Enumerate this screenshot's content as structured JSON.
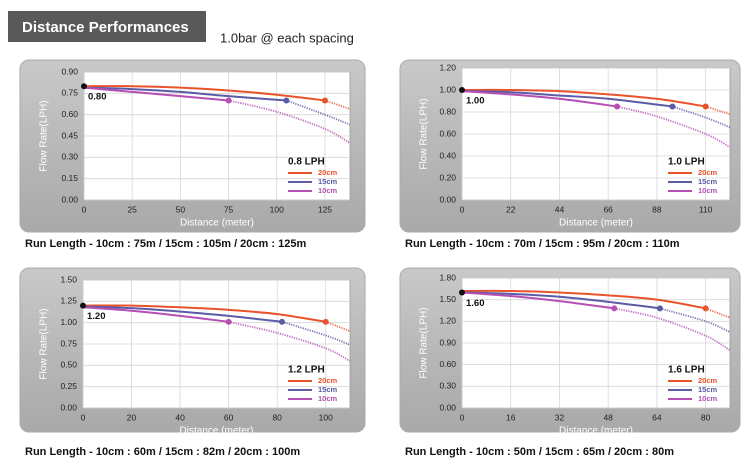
{
  "header": {
    "title": "Distance Performances",
    "subtitle": "1.0bar @ each spacing"
  },
  "chart_data": [
    {
      "type": "line",
      "title": "0.8 LPH",
      "xlabel": "Distance (meter)",
      "ylabel": "Flow Rate(LPH)",
      "start_label": {
        "value": 0.8,
        "label": "0.80"
      },
      "caption": "Run Length - 10cm : 75m / 15cm : 105m / 20cm : 125m",
      "xlim": [
        0,
        138
      ],
      "ylim": [
        0,
        0.9
      ],
      "xticks": [
        0,
        25,
        50,
        75,
        100,
        125
      ],
      "yticks": [
        {
          "value": 0,
          "label": "0.00"
        },
        {
          "value": 0.15,
          "label": "0.15"
        },
        {
          "value": 0.3,
          "label": "0.30"
        },
        {
          "value": 0.45,
          "label": "0.45"
        },
        {
          "value": 0.6,
          "label": "0.60"
        },
        {
          "value": 0.75,
          "label": "0.75"
        },
        {
          "value": 0.9,
          "label": "0.90"
        }
      ],
      "grid": true,
      "series": [
        {
          "name": "20cm",
          "color": "#e8532b",
          "run_length": 125,
          "x": [
            0,
            25,
            50,
            75,
            100,
            125,
            138
          ],
          "values": [
            0.8,
            0.8,
            0.79,
            0.77,
            0.74,
            0.7,
            0.64
          ]
        },
        {
          "name": "15cm",
          "color": "#5b5ba6",
          "run_length": 105,
          "x": [
            0,
            25,
            50,
            75,
            105,
            125,
            138
          ],
          "values": [
            0.79,
            0.78,
            0.76,
            0.73,
            0.7,
            0.6,
            0.53
          ]
        },
        {
          "name": "10cm",
          "color": "#b64fb4",
          "run_length": 75,
          "x": [
            0,
            25,
            50,
            75,
            100,
            125,
            138
          ],
          "values": [
            0.79,
            0.76,
            0.73,
            0.7,
            0.62,
            0.5,
            0.4
          ]
        }
      ]
    },
    {
      "type": "line",
      "title": "1.0 LPH",
      "xlabel": "Distance (meter)",
      "ylabel": "Flow Rate(LPH)",
      "start_label": {
        "value": 1.0,
        "label": "1.00"
      },
      "caption": "Run Length - 10cm : 70m / 15cm : 95m / 20cm : 110m",
      "xlim": [
        0,
        121
      ],
      "ylim": [
        0,
        1.2
      ],
      "xticks": [
        0,
        22,
        44,
        66,
        88,
        110
      ],
      "yticks": [
        {
          "value": 0,
          "label": "0.00"
        },
        {
          "value": 0.2,
          "label": "0.20"
        },
        {
          "value": 0.4,
          "label": "0.40"
        },
        {
          "value": 0.6,
          "label": "0.60"
        },
        {
          "value": 0.8,
          "label": "0.80"
        },
        {
          "value": 1.0,
          "label": "1.00"
        },
        {
          "value": 1.2,
          "label": "1.20"
        }
      ],
      "grid": true,
      "series": [
        {
          "name": "20cm",
          "color": "#e8532b",
          "run_length": 110,
          "x": [
            0,
            22,
            44,
            66,
            88,
            110,
            121
          ],
          "values": [
            1.0,
            1.0,
            0.99,
            0.96,
            0.92,
            0.85,
            0.78
          ]
        },
        {
          "name": "15cm",
          "color": "#5b5ba6",
          "run_length": 95,
          "x": [
            0,
            22,
            44,
            66,
            95,
            110,
            121
          ],
          "values": [
            0.99,
            0.98,
            0.95,
            0.92,
            0.85,
            0.75,
            0.66
          ]
        },
        {
          "name": "10cm",
          "color": "#b64fb4",
          "run_length": 70,
          "x": [
            0,
            22,
            44,
            70,
            88,
            110,
            121
          ],
          "values": [
            0.99,
            0.96,
            0.92,
            0.85,
            0.76,
            0.6,
            0.48
          ]
        }
      ]
    },
    {
      "type": "line",
      "title": "1.2 LPH",
      "xlabel": "Distance (meter)",
      "ylabel": "Flow Rate(LPH)",
      "start_label": {
        "value": 1.2,
        "label": "1.20"
      },
      "caption": "Run Length - 10cm : 60m / 15cm : 82m / 20cm : 100m",
      "xlim": [
        0,
        110
      ],
      "ylim": [
        0,
        1.5
      ],
      "xticks": [
        0,
        20,
        40,
        60,
        80,
        100
      ],
      "yticks": [
        {
          "value": 0,
          "label": "0.00"
        },
        {
          "value": 0.25,
          "label": "0.25"
        },
        {
          "value": 0.5,
          "label": "0.50"
        },
        {
          "value": 0.75,
          "label": "0.75"
        },
        {
          "value": 1.0,
          "label": "1.00"
        },
        {
          "value": 1.25,
          "label": "1.25"
        },
        {
          "value": 1.5,
          "label": "1.50"
        }
      ],
      "grid": true,
      "series": [
        {
          "name": "20cm",
          "color": "#e8532b",
          "run_length": 100,
          "x": [
            0,
            20,
            40,
            60,
            80,
            100,
            110
          ],
          "values": [
            1.2,
            1.2,
            1.18,
            1.15,
            1.1,
            1.01,
            0.9
          ]
        },
        {
          "name": "15cm",
          "color": "#5b5ba6",
          "run_length": 82,
          "x": [
            0,
            20,
            40,
            60,
            82,
            100,
            110
          ],
          "values": [
            1.19,
            1.17,
            1.13,
            1.08,
            1.01,
            0.85,
            0.74
          ]
        },
        {
          "name": "10cm",
          "color": "#b64fb4",
          "run_length": 60,
          "x": [
            0,
            20,
            40,
            60,
            80,
            100,
            110
          ],
          "values": [
            1.18,
            1.14,
            1.08,
            1.01,
            0.88,
            0.7,
            0.55
          ]
        }
      ]
    },
    {
      "type": "line",
      "title": "1.6 LPH",
      "xlabel": "Distance (meter)",
      "ylabel": "Flow Rate(LPH)",
      "start_label": {
        "value": 1.6,
        "label": "1.60"
      },
      "caption": "Run Length - 10cm : 50m / 15cm : 65m / 20cm : 80m",
      "xlim": [
        0,
        88
      ],
      "ylim": [
        0,
        1.8
      ],
      "xticks": [
        0,
        16,
        32,
        48,
        64,
        80
      ],
      "yticks": [
        {
          "value": 0,
          "label": "0.00"
        },
        {
          "value": 0.3,
          "label": "0.30"
        },
        {
          "value": 0.6,
          "label": "0.60"
        },
        {
          "value": 0.9,
          "label": "0.90"
        },
        {
          "value": 1.2,
          "label": "1.20"
        },
        {
          "value": 1.5,
          "label": "1.50"
        },
        {
          "value": 1.8,
          "label": "1.80"
        }
      ],
      "grid": true,
      "series": [
        {
          "name": "20cm",
          "color": "#e8532b",
          "run_length": 80,
          "x": [
            0,
            16,
            32,
            48,
            64,
            80,
            88
          ],
          "values": [
            1.62,
            1.62,
            1.6,
            1.56,
            1.5,
            1.38,
            1.25
          ]
        },
        {
          "name": "15cm",
          "color": "#5b5ba6",
          "run_length": 65,
          "x": [
            0,
            16,
            32,
            48,
            65,
            80,
            88
          ],
          "values": [
            1.6,
            1.58,
            1.54,
            1.47,
            1.38,
            1.2,
            1.05
          ]
        },
        {
          "name": "10cm",
          "color": "#b64fb4",
          "run_length": 50,
          "x": [
            0,
            16,
            32,
            50,
            64,
            80,
            88
          ],
          "values": [
            1.6,
            1.55,
            1.48,
            1.38,
            1.25,
            1.0,
            0.8
          ]
        }
      ]
    }
  ]
}
